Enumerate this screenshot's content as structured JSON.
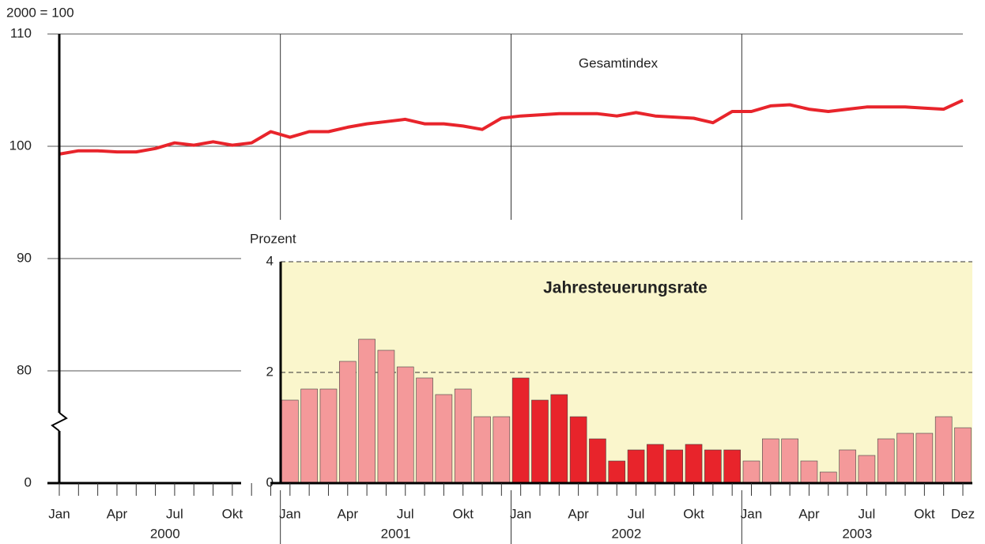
{
  "chart_data": [
    {
      "type": "line",
      "y_label": "2000 = 100",
      "annotation": "Gesamtindex",
      "categories": [
        "Jan",
        null,
        null,
        "Apr",
        null,
        null,
        "Jul",
        null,
        null,
        "Okt",
        null,
        null,
        "Jan",
        null,
        null,
        "Apr",
        null,
        null,
        "Jul",
        null,
        null,
        "Okt",
        null,
        null,
        "Jan",
        null,
        null,
        "Apr",
        null,
        null,
        "Jul",
        null,
        null,
        "Okt",
        null,
        null,
        "Jan",
        null,
        null,
        "Apr",
        null,
        null,
        "Jul",
        null,
        null,
        "Okt",
        null,
        "Dez"
      ],
      "x_groups": [
        "2000",
        "2001",
        "2002",
        "2003"
      ],
      "series": [
        {
          "name": "Gesamtindex",
          "color": "#e8242b",
          "values": [
            99.3,
            99.6,
            99.6,
            99.5,
            99.5,
            99.8,
            100.3,
            100.1,
            100.4,
            100.1,
            100.3,
            101.3,
            100.8,
            101.3,
            101.3,
            101.7,
            102.0,
            102.2,
            102.4,
            102.0,
            102.0,
            101.8,
            101.5,
            102.5,
            102.7,
            102.8,
            102.9,
            102.9,
            102.9,
            102.7,
            103.0,
            102.7,
            102.6,
            102.5,
            102.1,
            103.1,
            103.1,
            103.6,
            103.7,
            103.3,
            103.1,
            103.3,
            103.5,
            103.5,
            103.5,
            103.4,
            103.3,
            104.1
          ]
        }
      ],
      "ylim": [
        0,
        110
      ],
      "yticks": [
        0,
        80,
        90,
        100,
        110
      ],
      "y_break": true,
      "grid": true
    },
    {
      "type": "bar",
      "title": "Jahresteuerungsrate",
      "y_label": "Prozent",
      "values": [
        null,
        null,
        null,
        null,
        null,
        null,
        null,
        null,
        null,
        null,
        null,
        null,
        1.5,
        1.7,
        1.7,
        2.2,
        2.6,
        2.4,
        2.1,
        1.9,
        1.6,
        1.7,
        1.2,
        1.2,
        1.9,
        1.5,
        1.6,
        1.2,
        0.8,
        0.4,
        0.6,
        0.7,
        0.6,
        0.7,
        0.6,
        0.6,
        0.4,
        0.8,
        0.8,
        0.4,
        0.2,
        0.6,
        0.5,
        0.8,
        0.9,
        0.9,
        1.2,
        1.0
      ],
      "colors": [
        null,
        null,
        null,
        null,
        null,
        null,
        null,
        null,
        null,
        null,
        null,
        null,
        "#f4999a",
        "#f4999a",
        "#f4999a",
        "#f4999a",
        "#f4999a",
        "#f4999a",
        "#f4999a",
        "#f4999a",
        "#f4999a",
        "#f4999a",
        "#f4999a",
        "#f4999a",
        "#e8242b",
        "#e8242b",
        "#e8242b",
        "#e8242b",
        "#e8242b",
        "#e8242b",
        "#e8242b",
        "#e8242b",
        "#e8242b",
        "#e8242b",
        "#e8242b",
        "#e8242b",
        "#f4999a",
        "#f4999a",
        "#f4999a",
        "#f4999a",
        "#f4999a",
        "#f4999a",
        "#f4999a",
        "#f4999a",
        "#f4999a",
        "#f4999a",
        "#f4999a",
        "#f4999a"
      ],
      "background": "#faf6cc",
      "ylim": [
        0,
        4
      ],
      "yticks": [
        0,
        2,
        4
      ],
      "grid": true
    }
  ]
}
